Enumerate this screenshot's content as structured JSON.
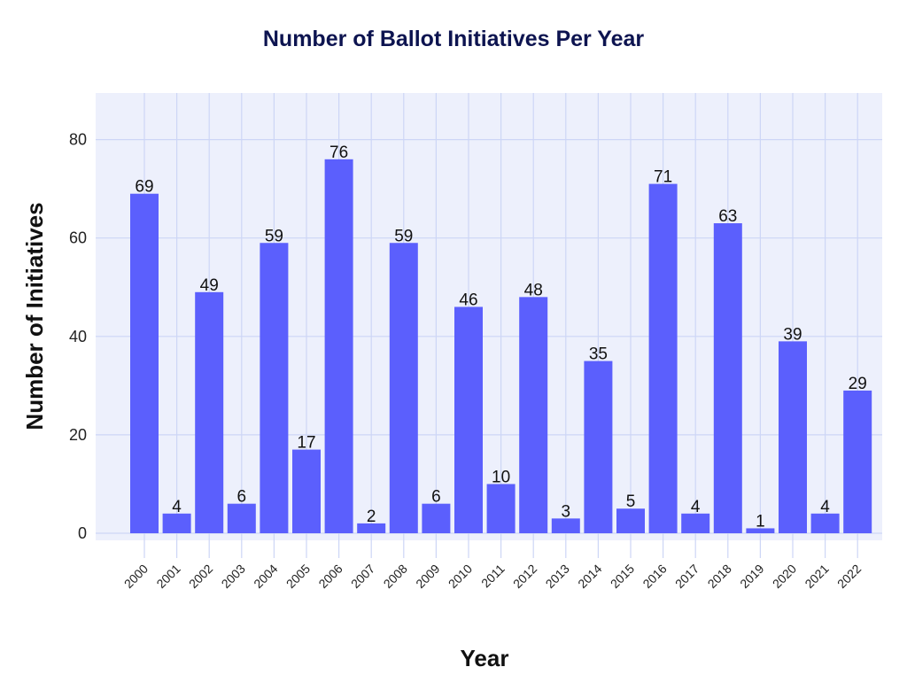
{
  "chart_data": {
    "type": "bar",
    "title": "Number of Ballot Initiatives Per Year",
    "xlabel": "Year",
    "ylabel": "Number of Initiatives",
    "categories": [
      "2000",
      "2001",
      "2002",
      "2003",
      "2004",
      "2005",
      "2006",
      "2007",
      "2008",
      "2009",
      "2010",
      "2011",
      "2012",
      "2013",
      "2014",
      "2015",
      "2016",
      "2017",
      "2018",
      "2019",
      "2020",
      "2021",
      "2022"
    ],
    "values": [
      69,
      4,
      49,
      6,
      59,
      17,
      76,
      2,
      59,
      6,
      46,
      10,
      48,
      3,
      35,
      5,
      71,
      4,
      63,
      1,
      39,
      4,
      29
    ],
    "ylim": [
      0,
      89
    ],
    "yticks": [
      0,
      20,
      40,
      60,
      80
    ],
    "grid": true,
    "legend": "none",
    "colors": {
      "bar": "#5b5ffd",
      "plot_bg": "#edf0fc",
      "grid": "#cdd6f6",
      "title": "#0d1450"
    }
  }
}
